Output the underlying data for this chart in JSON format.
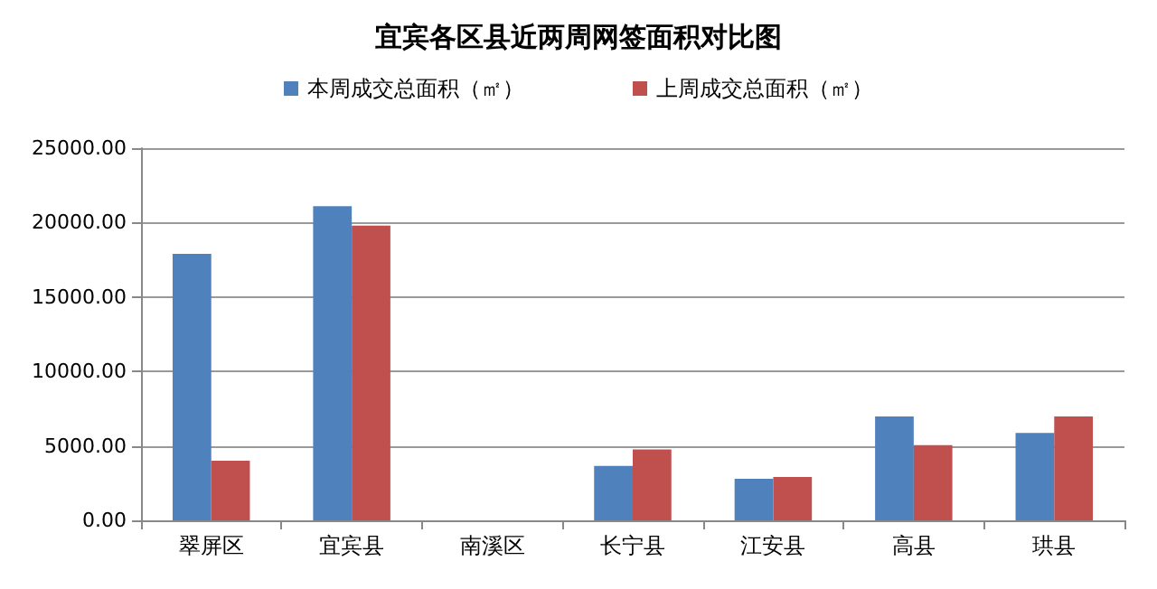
{
  "chart_data": {
    "type": "bar",
    "title": "宜宾各区县近两周网签面积对比图",
    "categories": [
      "翠屏区",
      "宜宾县",
      "南溪区",
      "长宁县",
      "江安县",
      "高县",
      "珙县"
    ],
    "series": [
      {
        "name": "本周成交总面积（㎡）",
        "color": "#4f81bd",
        "values": [
          17900,
          21100,
          0,
          3650,
          2790,
          6980,
          5870
        ]
      },
      {
        "name": "上周成交总面积（㎡）",
        "color": "#c0504d",
        "values": [
          4000,
          19800,
          0,
          4760,
          2910,
          5050,
          6980
        ]
      }
    ],
    "ylim": [
      0,
      25000
    ],
    "yticks": [
      {
        "value": 0,
        "label": "0.00"
      },
      {
        "value": 5000,
        "label": "5000.00"
      },
      {
        "value": 10000,
        "label": "10000.00"
      },
      {
        "value": 15000,
        "label": "15000.00"
      },
      {
        "value": 20000,
        "label": "20000.00"
      },
      {
        "value": 25000,
        "label": "25000.00"
      }
    ],
    "grid": "y",
    "legend": "top"
  }
}
